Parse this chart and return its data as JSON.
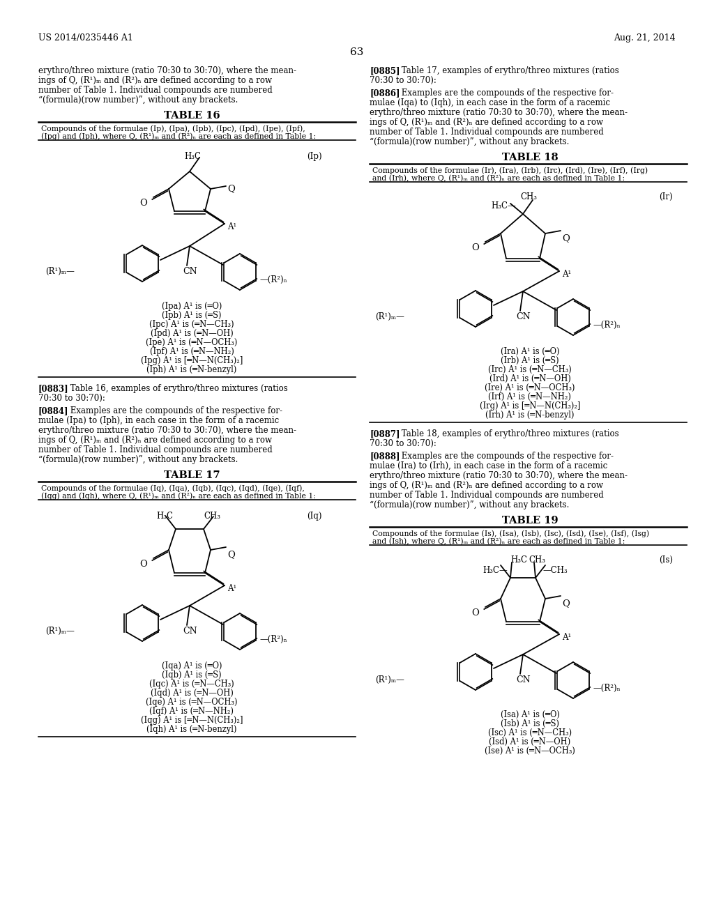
{
  "page_header_left": "US 2014/0235446 A1",
  "page_header_right": "Aug. 21, 2014",
  "page_number": "63",
  "bg_color": "#ffffff"
}
